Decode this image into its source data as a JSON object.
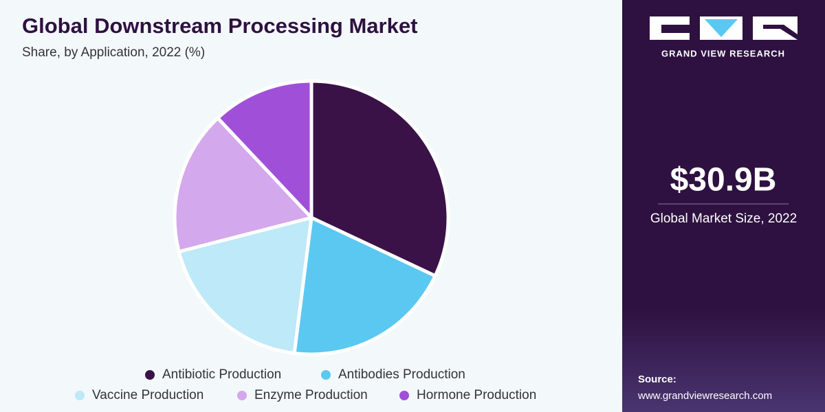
{
  "chart_data": {
    "type": "pie",
    "title": "Global Downstream Processing Market",
    "subtitle": "Share, by Application, 2022 (%)",
    "categories": [
      "Antibiotic Production",
      "Antibodies Production",
      "Vaccine Production",
      "Enzyme Production",
      "Hormone Production"
    ],
    "values": [
      32,
      20,
      19,
      17,
      12
    ],
    "colors": [
      "#3a1248",
      "#5bc8f2",
      "#bde9f8",
      "#d4a8ec",
      "#a050d8"
    ]
  },
  "brand": "GRAND VIEW RESEARCH",
  "market_size": "$30.9B",
  "market_size_label": "Global Market Size, 2022",
  "source_label": "Source:",
  "source_url": "www.grandviewresearch.com"
}
